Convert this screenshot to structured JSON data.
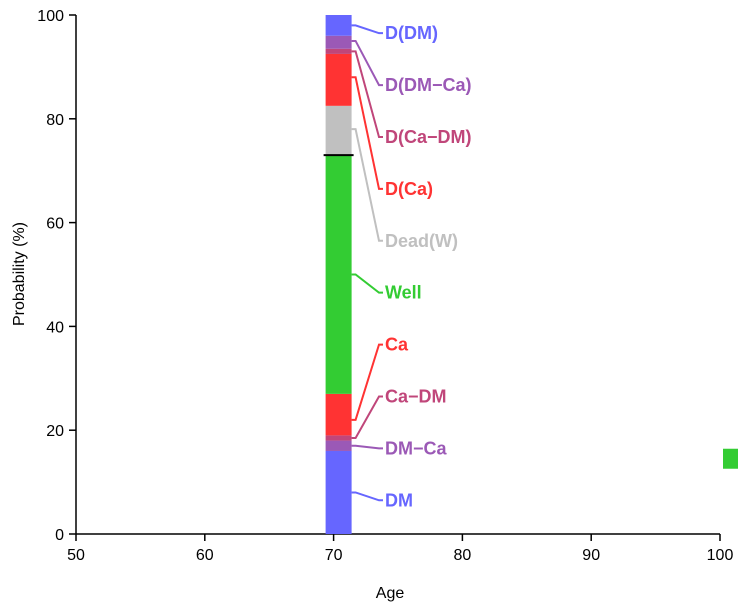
{
  "chart_data": {
    "type": "bar",
    "stacked": true,
    "x": 70,
    "xlabel": "Age",
    "ylabel": "Probability (%)",
    "xlim": [
      50,
      101
    ],
    "ylim": [
      0,
      100
    ],
    "xticks": [
      "50",
      "60",
      "70",
      "80",
      "90",
      "100"
    ],
    "yticks": [
      "0",
      "20",
      "40",
      "60",
      "80",
      "100"
    ],
    "grid": false,
    "segments": [
      {
        "name": "DM",
        "from": 0,
        "to": 16,
        "color": "#6666ff"
      },
      {
        "name": "DM−Ca",
        "from": 16,
        "to": 18,
        "color": "#9b59b6"
      },
      {
        "name": "Ca−DM",
        "from": 18,
        "to": 19,
        "color": "#c0467a"
      },
      {
        "name": "Ca",
        "from": 19,
        "to": 27,
        "color": "#ff3333"
      },
      {
        "name": "Well",
        "from": 27,
        "to": 73,
        "color": "#33cc33"
      },
      {
        "name": "Dead(W)",
        "from": 73,
        "to": 82.5,
        "color": "#c0c0c0"
      },
      {
        "name": "D(Ca)",
        "from": 82.5,
        "to": 92.5,
        "color": "#ff3333"
      },
      {
        "name": "D(Ca−DM)",
        "from": 92.5,
        "to": 93.5,
        "color": "#c0467a"
      },
      {
        "name": "D(DM−Ca)",
        "from": 93.5,
        "to": 96,
        "color": "#9b59b6"
      },
      {
        "name": "D(DM)",
        "from": 96,
        "to": 100,
        "color": "#6666ff"
      }
    ],
    "reference_line_y": 73,
    "labels": [
      {
        "text": "D(DM)",
        "color": "#6666ff",
        "anchor_y": 98,
        "label_y": 96.5
      },
      {
        "text": "D(DM−Ca)",
        "color": "#9b59b6",
        "anchor_y": 95,
        "label_y": 86.5
      },
      {
        "text": "D(Ca−DM)",
        "color": "#c0467a",
        "anchor_y": 93,
        "label_y": 76.5
      },
      {
        "text": "D(Ca)",
        "color": "#ff3333",
        "anchor_y": 88,
        "label_y": 66.5
      },
      {
        "text": "Dead(W)",
        "color": "#c0c0c0",
        "anchor_y": 78,
        "label_y": 56.5
      },
      {
        "text": "Well",
        "color": "#33cc33",
        "anchor_y": 50,
        "label_y": 46.5
      },
      {
        "text": "Ca",
        "color": "#ff3333",
        "anchor_y": 22,
        "label_y": 36.5
      },
      {
        "text": "Ca−DM",
        "color": "#c0467a",
        "anchor_y": 18.5,
        "label_y": 26.5
      },
      {
        "text": "DM−Ca",
        "color": "#9b59b6",
        "anchor_y": 17,
        "label_y": 16.5
      },
      {
        "text": "DM",
        "color": "#6666ff",
        "anchor_y": 8,
        "label_y": 6.5
      }
    ],
    "marker": {
      "color": "#33cc33",
      "value": 14.5
    }
  }
}
